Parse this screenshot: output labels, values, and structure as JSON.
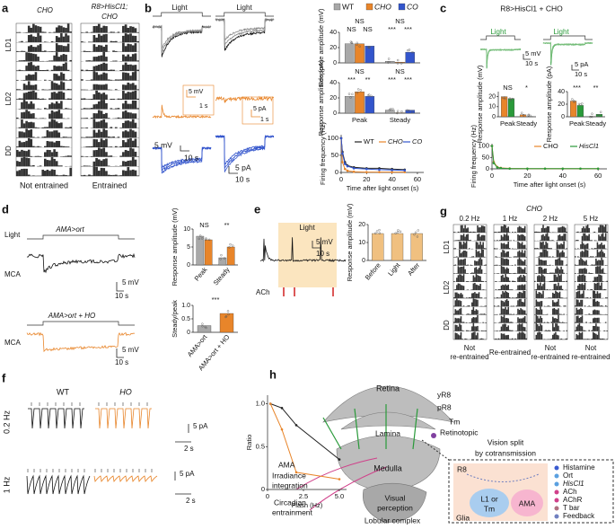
{
  "panels": {
    "a": {
      "label": "a",
      "left_title": "CHO",
      "right_title": [
        "R8>HisCl1;",
        "CHO"
      ],
      "rows": [
        "LD1",
        "LD2",
        "DD"
      ],
      "captions": [
        "Not entrained",
        "Entrained"
      ]
    },
    "b": {
      "label": "b",
      "light": [
        "Light",
        "Light"
      ],
      "scale": [
        "5 mV",
        "1 s",
        "5 pA",
        "1 s",
        "5 mV",
        "10 s",
        "5 pA",
        "10 s"
      ]
    },
    "c": {
      "label": "c",
      "title": "R8>HisCl1 + CHO",
      "light": [
        "Light",
        "Light"
      ],
      "scale": [
        "5 mV",
        "10 s",
        "5 pA",
        "10 s"
      ]
    },
    "d": {
      "label": "d",
      "light": "Light",
      "top_genotype": "AMA>ort",
      "bottom_genotype": "AMA>ort + HO",
      "cell": [
        "MCA",
        "MCA"
      ],
      "scale": [
        "5 mV",
        "10 s",
        "5 mV",
        "10 s"
      ]
    },
    "e": {
      "label": "e",
      "light": "Light",
      "scale": [
        "5 mV",
        "10 s"
      ],
      "stimulus": "ACh"
    },
    "f": {
      "label": "f",
      "genotypes": [
        "WT",
        "HO"
      ],
      "rates": [
        "0.2 Hz",
        "1 Hz"
      ],
      "scale": [
        "2 s",
        "5 pA",
        "5 pA",
        "2 s"
      ]
    },
    "g": {
      "label": "g",
      "title": "CHO",
      "rates": [
        "0.2 Hz",
        "1 Hz",
        "2 Hz",
        "5 Hz"
      ],
      "rows": [
        "LD1",
        "LD2",
        "DD"
      ],
      "captions": [
        [
          "Not",
          "re-entrained"
        ],
        [
          "Re-entrained"
        ],
        [
          "Not",
          "re-entrained"
        ],
        [
          "Not",
          "re-entrained"
        ]
      ]
    },
    "h": {
      "label": "h",
      "retina": "Retina",
      "yr8": "yR8",
      "pr8": "pR8",
      "lamina": "Lamina",
      "tm": "Tm",
      "retinotopic": "Retinotopic",
      "medulla": "Medulla",
      "ama": "AMA",
      "irradiance": [
        "Irradiance",
        "integration"
      ],
      "circadian": [
        "Circadian",
        "entrainment"
      ],
      "visual": [
        "Visual",
        "perception"
      ],
      "lobular": "Lobular complex",
      "box_title": [
        "Vision split",
        "by cotransmission"
      ],
      "r8": "R8",
      "l1": [
        "L1 or",
        "Tm"
      ],
      "ama_cell": "AMA",
      "glia": "Glia",
      "legend": [
        "Histamine",
        "Ort",
        "HisCl1",
        "ACh",
        "AChR",
        "T bar",
        "Feedback"
      ]
    }
  },
  "chart_data": [
    {
      "type": "bar",
      "ylabel": "Response amplitude (mV)",
      "categories": [
        null,
        null
      ],
      "ylim": [
        0,
        40
      ],
      "yticks": [
        0,
        20,
        40
      ],
      "series": [
        {
          "name": "WT",
          "color": "#a8a8a8",
          "values": [
            25,
            2
          ]
        },
        {
          "name": "CHO",
          "color": "#e8852a",
          "values": [
            25,
            1
          ]
        },
        {
          "name": "CO",
          "color": "#3355cc",
          "values": [
            22,
            14
          ]
        }
      ],
      "annotations": [
        "NS",
        "NS",
        "NS",
        "NS",
        "***",
        "***"
      ]
    },
    {
      "type": "bar",
      "ylabel": "Response amplitude (pA)",
      "categories": [
        "Peak",
        "Steady"
      ],
      "ylim": [
        0,
        40
      ],
      "yticks": [
        0,
        20,
        40
      ],
      "series": [
        {
          "color": "#a8a8a8",
          "values": [
            22,
            4
          ]
        },
        {
          "color": "#e8852a",
          "values": [
            28,
            0.5
          ]
        },
        {
          "color": "#3355cc",
          "values": [
            22,
            4
          ]
        }
      ],
      "annotations": [
        "NS",
        "***",
        "**",
        "NS",
        "***",
        "***"
      ]
    },
    {
      "type": "line",
      "ylabel": "Firing frequency (Hz)",
      "xlabel": "Time after light onset (s)",
      "xlim": [
        0,
        65
      ],
      "ylim": [
        0,
        110
      ],
      "xticks": [
        0,
        20,
        40,
        60
      ],
      "yticks": [
        0,
        50,
        100
      ],
      "series": [
        {
          "name": "WT",
          "color": "#222222",
          "x": [
            0,
            1,
            3,
            5,
            10,
            20,
            30,
            40,
            50
          ],
          "values": [
            100,
            60,
            30,
            20,
            15,
            12,
            12,
            10,
            8
          ]
        },
        {
          "name": "CHO",
          "color": "#e8852a",
          "x": [
            0,
            1,
            3,
            5,
            10,
            20,
            30,
            40,
            50
          ],
          "values": [
            100,
            30,
            10,
            5,
            2,
            1,
            1,
            1,
            1
          ]
        },
        {
          "name": "CO",
          "color": "#3355cc",
          "x": [
            0,
            1,
            3,
            5,
            10,
            20,
            30,
            40,
            50
          ],
          "values": [
            100,
            55,
            25,
            18,
            12,
            10,
            8,
            7,
            6
          ]
        }
      ]
    },
    {
      "type": "bar",
      "ylabel": "Response amplitude (mV)",
      "categories": [
        "Peak",
        "Steady"
      ],
      "ylim": [
        0,
        25
      ],
      "yticks": [
        0,
        10,
        20
      ],
      "series": [
        {
          "color": "#e8852a",
          "values": [
            20,
            2
          ]
        },
        {
          "color": "#2a9a3a",
          "values": [
            18,
            0.3
          ]
        }
      ],
      "annotations": [
        "NS",
        "*"
      ]
    },
    {
      "type": "bar",
      "ylabel": "Response amplitude (pA)",
      "categories": [
        "Peak",
        "Steady"
      ],
      "ylim": [
        0,
        40
      ],
      "yticks": [
        0,
        20,
        40
      ],
      "series": [
        {
          "color": "#e8852a",
          "values": [
            25,
            0.5
          ]
        },
        {
          "color": "#2a9a3a",
          "values": [
            18,
            4
          ]
        }
      ],
      "annotations": [
        "***",
        "**"
      ]
    },
    {
      "type": "line",
      "ylabel": "Firing frequency (Hz)",
      "xlabel": "Time after light onset (s)",
      "xlim": [
        0,
        65
      ],
      "ylim": [
        0,
        110
      ],
      "xticks": [
        0,
        20,
        40,
        60
      ],
      "yticks": [
        0,
        50,
        100
      ],
      "series": [
        {
          "name": "CHO",
          "color": "#e8852a",
          "x": [
            0,
            1,
            3,
            5,
            10,
            20,
            30,
            40,
            50,
            60
          ],
          "values": [
            100,
            30,
            8,
            4,
            2,
            1,
            1,
            1,
            1,
            1
          ]
        },
        {
          "name": "HisCl1",
          "color": "#2a9a3a",
          "x": [
            0,
            1,
            3,
            5,
            10,
            20,
            30,
            40,
            50,
            60
          ],
          "values": [
            100,
            25,
            6,
            3,
            1,
            1,
            1,
            1,
            1,
            1
          ]
        }
      ]
    },
    {
      "type": "bar",
      "ylabel": "Response amplitude (mV)",
      "categories": [
        "Peak",
        "Steady"
      ],
      "ylim": [
        0,
        10
      ],
      "yticks": [
        0,
        5,
        10
      ],
      "series": [
        {
          "color": "#a8a8a8",
          "values": [
            8,
            2
          ]
        },
        {
          "color": "#e8852a",
          "values": [
            7,
            5
          ]
        }
      ],
      "annotations": [
        "NS",
        "**"
      ]
    },
    {
      "type": "bar",
      "ylabel": "Steady/peak",
      "categories": [
        "AMA>ort",
        "AMA>ort + HO"
      ],
      "ylim": [
        0,
        1
      ],
      "yticks": [
        0,
        0.5,
        {
          "value": 1,
          "label": "1.0"
        }
      ],
      "values": [
        0.25,
        0.7
      ],
      "colors": [
        "#a8a8a8",
        "#e8852a"
      ],
      "annotations": [
        "***"
      ]
    },
    {
      "type": "bar",
      "ylabel": "Response amplitude (mV)",
      "categories": [
        "Before",
        "Light",
        "After"
      ],
      "ylim": [
        0,
        20
      ],
      "yticks": [
        0,
        10,
        20
      ],
      "values": [
        15,
        15,
        15
      ],
      "colors": [
        "#f0c080",
        "#f0c080",
        "#f0c080"
      ]
    },
    {
      "type": "line",
      "ylabel": "Ratio",
      "xlabel": "Flash (Hz)",
      "xlim": [
        0,
        5.5
      ],
      "ylim": [
        0,
        1.1
      ],
      "xticks": [
        0,
        2.5,
        {
          "value": 5,
          "label": "5.0"
        }
      ],
      "yticks": [
        0,
        0.5,
        {
          "value": 1,
          "label": "1.0"
        }
      ],
      "series": [
        {
          "color": "#222222",
          "x": [
            0.2,
            1,
            2,
            5
          ],
          "values": [
            1,
            0.95,
            0.75,
            0.35
          ]
        },
        {
          "color": "#e8852a",
          "x": [
            0.2,
            1,
            2,
            5
          ],
          "values": [
            1,
            0.7,
            0.2,
            0.12
          ]
        }
      ]
    }
  ]
}
